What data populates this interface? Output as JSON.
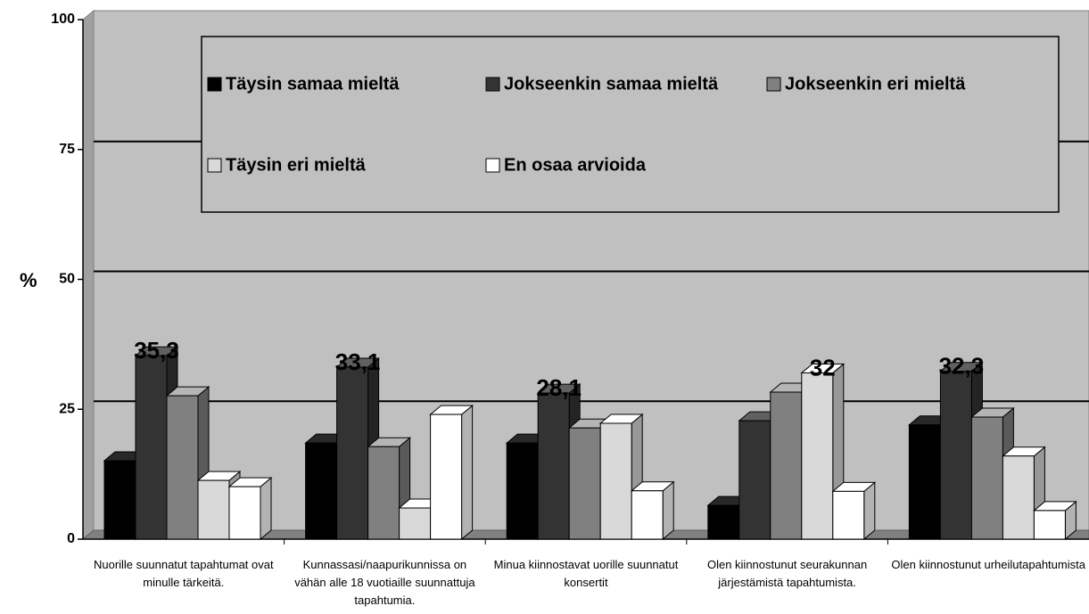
{
  "chart_data": {
    "type": "bar3d",
    "y_label": "%",
    "categories": [
      "Nuorille suunnatut tapahtumat ovat minulle tärkeitä.",
      "Kunnassasi/naapurikunnissa on vähän alle 18 vuotiaille suunnattuja tapahtumia.",
      "Minua kiinnostavat uorille suunnatut konsertit",
      "Olen kiinnostunut seurakunnan järjestämistä tapahtumista.",
      "Olen kiinnostunut urheilutapahtumista"
    ],
    "series": [
      {
        "name": "Täysin samaa mieltä",
        "color": "#000000",
        "values": [
          15.1,
          18.5,
          18.5,
          6.5,
          22
        ]
      },
      {
        "name": "Jokseenkin samaa mieltä",
        "color": "#333333",
        "values": [
          35.3,
          33.1,
          28.1,
          22.8,
          32.3
        ],
        "value_labels": [
          "35,3",
          "33,1",
          "28,1",
          null,
          "32,3"
        ]
      },
      {
        "name": "Jokseenkin eri mieltä",
        "color": "#808080",
        "values": [
          27.6,
          17.8,
          21.4,
          28.3,
          23.5
        ]
      },
      {
        "name": "Täysin eri mieltä",
        "color": "#d9d9d9",
        "values": [
          11.3,
          6,
          22.3,
          32,
          16
        ],
        "value_labels": [
          null,
          null,
          null,
          "32",
          null
        ]
      },
      {
        "name": "En osaa arvioida",
        "color": "#ffffff",
        "values": [
          10.1,
          24,
          9.3,
          9.2,
          5.5
        ]
      }
    ],
    "ylim": [
      0,
      100
    ],
    "yticks": [
      0,
      25,
      50,
      75,
      100
    ],
    "grid": true
  }
}
